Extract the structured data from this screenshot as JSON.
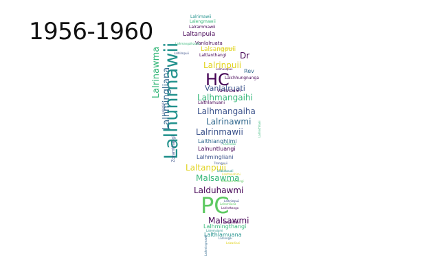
{
  "title": "1956-1960",
  "palette": {
    "purple": "#440154",
    "indigo": "#3b528b",
    "blue": "#31688e",
    "teal": "#21918c",
    "green": "#35b779",
    "lime": "#5ec962",
    "yellow": "#e0d21a"
  },
  "words": [
    {
      "text": "Lalhunmawii",
      "color": "#21918c"
    },
    {
      "text": "PC",
      "color": "#5ec962"
    },
    {
      "text": "HC",
      "color": "#440154"
    },
    {
      "text": "Lalrinawma",
      "color": "#35b779"
    },
    {
      "text": "Lalhmingliana",
      "color": "#31688e"
    },
    {
      "text": "Lalrinpuii",
      "color": "#e0d21a"
    },
    {
      "text": "Lalhmangaihi",
      "color": "#35b779"
    },
    {
      "text": "Lalhmangaiha",
      "color": "#3b528b"
    },
    {
      "text": "Lalrinawmi",
      "color": "#31688e"
    },
    {
      "text": "Lalrinmawii",
      "color": "#3b528b"
    },
    {
      "text": "Laltanpuii",
      "color": "#e0d21a"
    },
    {
      "text": "Malsawma",
      "color": "#35b779"
    },
    {
      "text": "Lalduhawmi",
      "color": "#440154"
    },
    {
      "text": "Malsawmi",
      "color": "#440154"
    },
    {
      "text": "Vanlalruati",
      "color": "#3b528b"
    },
    {
      "text": "Dr",
      "color": "#440154"
    },
    {
      "text": "Rev",
      "color": "#31688e"
    },
    {
      "text": "Lalthianghlimi",
      "color": "#31688e"
    },
    {
      "text": "Lalnuntluangi",
      "color": "#440154"
    },
    {
      "text": "Lalhmingliani",
      "color": "#3b528b"
    },
    {
      "text": "Lalhmingthangi",
      "color": "#35b779"
    },
    {
      "text": "Lalthlamuana",
      "color": "#21918c"
    },
    {
      "text": "Laltanpuia",
      "color": "#440154"
    },
    {
      "text": "Lalsangpuii",
      "color": "#e0d21a"
    },
    {
      "text": "Lalrammawii",
      "color": "#440154"
    },
    {
      "text": "Lalengmawii",
      "color": "#35b779"
    },
    {
      "text": "Lalrimawii",
      "color": "#21918c"
    },
    {
      "text": "Vanlalruata",
      "color": "#440154"
    },
    {
      "text": "Laltlanthangi",
      "color": "#440154"
    },
    {
      "text": "Lalchhungnunga",
      "color": "#440154"
    },
    {
      "text": "Vanlalsiami",
      "color": "#440154"
    },
    {
      "text": "Lalthlamuani",
      "color": "#440154"
    },
    {
      "text": "Zoramthangi",
      "color": "#3b528b"
    },
    {
      "text": "Lalzarliani",
      "color": "#e0d21a"
    },
    {
      "text": "Lalramliana",
      "color": "#5ec962"
    },
    {
      "text": "Lalrinthanga",
      "color": "#440154"
    },
    {
      "text": "Lalrinngai",
      "color": "#31688e"
    },
    {
      "text": "Lalchhanhimi",
      "color": "#e0d21a"
    },
    {
      "text": "Lalhmangaihzuali",
      "color": "#35b779"
    },
    {
      "text": "Lalhlimpuii",
      "color": "#3b528b"
    },
    {
      "text": "Lalrindiki",
      "color": "#35b779"
    },
    {
      "text": "Malsawmtluangi",
      "color": "#5ec962"
    },
    {
      "text": "Lalmuanpuii",
      "color": "#440154"
    },
    {
      "text": "Lalruatkimi",
      "color": "#e0d21a"
    },
    {
      "text": "Thangpuii",
      "color": "#3b528b"
    },
    {
      "text": "Lalbiakzuali",
      "color": "#21918c"
    },
    {
      "text": "Lalremsiami",
      "color": "#21918c"
    },
    {
      "text": "Lalhriatpuii",
      "color": "#3b528b"
    },
    {
      "text": "Ramdinthari",
      "color": "#440154"
    },
    {
      "text": "Lalrinchhani",
      "color": "#35b779"
    },
    {
      "text": "Lalhmingmawii",
      "color": "#31688e"
    },
    {
      "text": "Lalrinfeli",
      "color": "#3b528b"
    }
  ]
}
